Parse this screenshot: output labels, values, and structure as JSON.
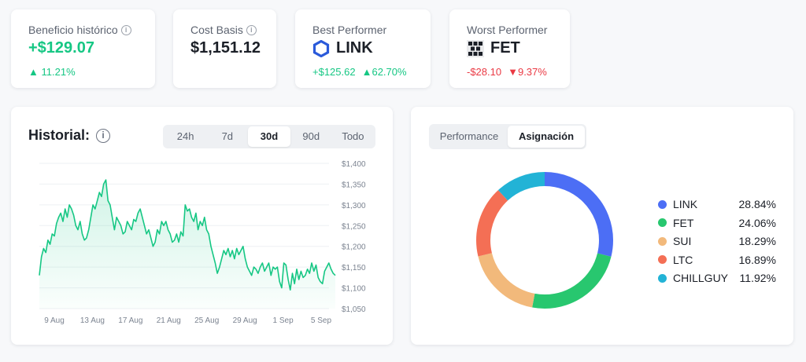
{
  "stats": {
    "profit": {
      "label": "Beneficio histórico",
      "value": "+$129.07",
      "change": "11.21%"
    },
    "cost": {
      "label": "Cost Basis",
      "value": "$1,151.12"
    },
    "best": {
      "label": "Best Performer",
      "coin": "LINK",
      "amount": "+$125.62",
      "change": "62.70%"
    },
    "worst": {
      "label": "Worst Performer",
      "coin": "FET",
      "amount": "-$28.10",
      "change": "9.37%"
    }
  },
  "history": {
    "title": "Historial:",
    "ranges": [
      "24h",
      "7d",
      "30d",
      "90d",
      "Todo"
    ],
    "active_range": "30d"
  },
  "allocation_tabs": [
    "Performance",
    "Asignación"
  ],
  "allocation_active": "Asignación",
  "colors": {
    "accent_green": "#16c784",
    "red": "#ea3943",
    "link": "#4c6ef5",
    "fet": "#28c76f",
    "sui": "#f2b97b",
    "ltc": "#f46f55",
    "chillguy": "#22b3d6"
  },
  "chart_data": [
    {
      "type": "area",
      "x_ticks": [
        "9 Aug",
        "13 Aug",
        "17 Aug",
        "21 Aug",
        "25 Aug",
        "29 Aug",
        "1 Sep",
        "5 Sep"
      ],
      "y_ticks": [
        "$1,400",
        "$1,350",
        "$1,300",
        "$1,250",
        "$1,200",
        "$1,150",
        "$1,100",
        "$1,050"
      ],
      "ylim": [
        1050,
        1400
      ],
      "series": [
        {
          "values": [
            1130,
            1175,
            1195,
            1185,
            1215,
            1205,
            1230,
            1225,
            1255,
            1270,
            1280,
            1260,
            1290,
            1270,
            1300,
            1290,
            1275,
            1250,
            1240,
            1260,
            1230,
            1215,
            1220,
            1240,
            1270,
            1300,
            1290,
            1310,
            1330,
            1320,
            1350,
            1360,
            1310,
            1300,
            1270,
            1240,
            1270,
            1260,
            1250,
            1230,
            1235,
            1260,
            1250,
            1240,
            1265,
            1260,
            1280,
            1290,
            1270,
            1250,
            1230,
            1240,
            1220,
            1200,
            1210,
            1240,
            1230,
            1260,
            1250,
            1260,
            1240,
            1230,
            1210,
            1215,
            1230,
            1210,
            1235,
            1225,
            1300,
            1285,
            1290,
            1270,
            1260,
            1280,
            1240,
            1260,
            1250,
            1270,
            1240,
            1230,
            1200,
            1180,
            1160,
            1135,
            1150,
            1170,
            1190,
            1180,
            1195,
            1175,
            1190,
            1170,
            1195,
            1180,
            1190,
            1200,
            1170,
            1150,
            1140,
            1130,
            1150,
            1145,
            1135,
            1150,
            1160,
            1140,
            1150,
            1160,
            1130,
            1150,
            1145,
            1150,
            1115,
            1100,
            1160,
            1155,
            1120,
            1095,
            1135,
            1110,
            1145,
            1120,
            1140,
            1125,
            1130,
            1145,
            1135,
            1160,
            1140,
            1155,
            1125,
            1115,
            1110,
            1140,
            1150,
            1160,
            1145,
            1135,
            1130
          ]
        }
      ]
    },
    {
      "type": "pie",
      "categories": [
        "LINK",
        "FET",
        "SUI",
        "LTC",
        "CHILLGUY"
      ],
      "values": [
        28.84,
        24.06,
        18.29,
        16.89,
        11.92
      ],
      "labels": [
        "28.84%",
        "24.06%",
        "18.29%",
        "16.89%",
        "11.92%"
      ],
      "colors": [
        "#4c6ef5",
        "#28c76f",
        "#f2b97b",
        "#f46f55",
        "#22b3d6"
      ]
    }
  ]
}
